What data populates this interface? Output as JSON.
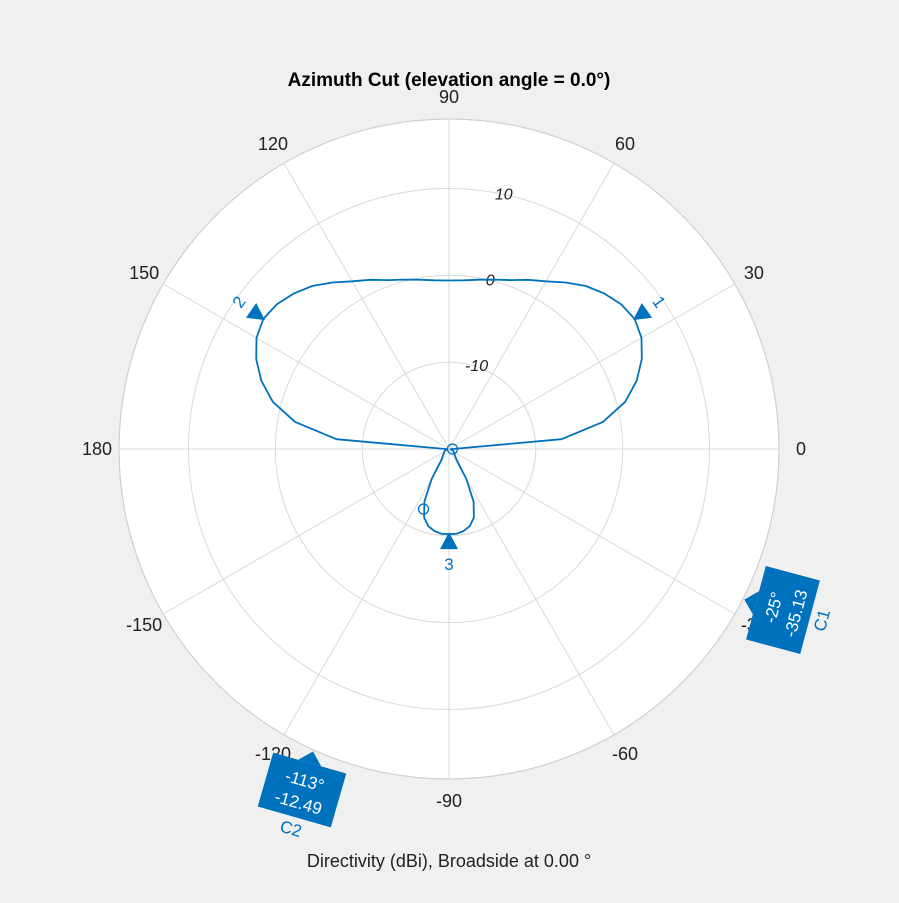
{
  "chart_data": {
    "type": "polar",
    "title": "Azimuth Cut (elevation angle = 0.0°)",
    "xlabel": "Directivity (dBi), Broadside at 0.00 °",
    "angle_ticks": [
      "0",
      "30",
      "60",
      "90",
      "120",
      "150",
      "180",
      "-150",
      "-120",
      "-90",
      "-60",
      "-30"
    ],
    "r_ticks": [
      "-10",
      "0",
      "10"
    ],
    "r_lim": [
      -20,
      18
    ],
    "grid": true,
    "line_color": "#0072BD",
    "series": [
      {
        "points": [
          {
            "az": 0,
            "dbi": -19.6
          },
          {
            "az": 5,
            "dbi": -7
          },
          {
            "az": 10,
            "dbi": -2
          },
          {
            "az": 15,
            "dbi": 1
          },
          {
            "az": 20,
            "dbi": 3
          },
          {
            "az": 25,
            "dbi": 4.5
          },
          {
            "az": 30,
            "dbi": 5.6
          },
          {
            "az": 35,
            "dbi": 6.1
          },
          {
            "az": 40,
            "dbi": 5.9
          },
          {
            "az": 45,
            "dbi": 5.3
          },
          {
            "az": 50,
            "dbi": 4.5
          },
          {
            "az": 55,
            "dbi": 3.4
          },
          {
            "az": 60,
            "dbi": 2.3
          },
          {
            "az": 65,
            "dbi": 1.5
          },
          {
            "az": 70,
            "dbi": 0.7
          },
          {
            "az": 75,
            "dbi": 0.2
          },
          {
            "az": 80,
            "dbi": -0.2
          },
          {
            "az": 85,
            "dbi": -0.5
          },
          {
            "az": 90,
            "dbi": -0.6
          },
          {
            "az": 95,
            "dbi": -0.5
          },
          {
            "az": 100,
            "dbi": -0.2
          },
          {
            "az": 105,
            "dbi": 0.2
          },
          {
            "az": 110,
            "dbi": 0.7
          },
          {
            "az": 115,
            "dbi": 1.5
          },
          {
            "az": 120,
            "dbi": 2.3
          },
          {
            "az": 125,
            "dbi": 3.4
          },
          {
            "az": 130,
            "dbi": 4.5
          },
          {
            "az": 135,
            "dbi": 5.3
          },
          {
            "az": 140,
            "dbi": 5.9
          },
          {
            "az": 145,
            "dbi": 6.1
          },
          {
            "az": 150,
            "dbi": 5.6
          },
          {
            "az": 155,
            "dbi": 4.5
          },
          {
            "az": 160,
            "dbi": 3
          },
          {
            "az": 165,
            "dbi": 1
          },
          {
            "az": 170,
            "dbi": -2
          },
          {
            "az": 175,
            "dbi": -7
          },
          {
            "az": 180,
            "dbi": -19.6
          },
          {
            "az": 185,
            "dbi": -19.8
          },
          {
            "az": 200,
            "dbi": -19.5
          },
          {
            "az": 220,
            "dbi": -19.2
          },
          {
            "az": 235,
            "dbi": -18.5
          },
          {
            "az": 240,
            "dbi": -16
          },
          {
            "az": 245,
            "dbi": -13.3
          },
          {
            "az": 250,
            "dbi": -11.6
          },
          {
            "az": 255,
            "dbi": -10.8
          },
          {
            "az": 260,
            "dbi": -10.4
          },
          {
            "az": 265,
            "dbi": -10.2
          },
          {
            "az": 270,
            "dbi": -10.2
          },
          {
            "az": 275,
            "dbi": -10.2
          },
          {
            "az": 280,
            "dbi": -10.4
          },
          {
            "az": 285,
            "dbi": -10.8
          },
          {
            "az": 290,
            "dbi": -11.6
          },
          {
            "az": 295,
            "dbi": -13.3
          },
          {
            "az": 300,
            "dbi": -16
          },
          {
            "az": 305,
            "dbi": -18.5
          },
          {
            "az": 320,
            "dbi": -19.2
          },
          {
            "az": 340,
            "dbi": -19.5
          },
          {
            "az": 355,
            "dbi": -19.8
          }
        ]
      }
    ],
    "peak_markers": [
      {
        "label": "1",
        "az": 35,
        "dbi": 6.1
      },
      {
        "label": "2",
        "az": 145,
        "dbi": 6.1
      },
      {
        "label": "3",
        "az": -90,
        "dbi": -10.2
      }
    ],
    "null_markers": [
      {
        "az": 0,
        "dbi": -19.6
      },
      {
        "az": -113,
        "dbi": -12.49
      }
    ],
    "cursors": [
      {
        "name": "C1",
        "angle_text": "-25°",
        "value_text": "-35.13"
      },
      {
        "name": "C2",
        "angle_text": "-113°",
        "value_text": "-12.49"
      }
    ]
  }
}
